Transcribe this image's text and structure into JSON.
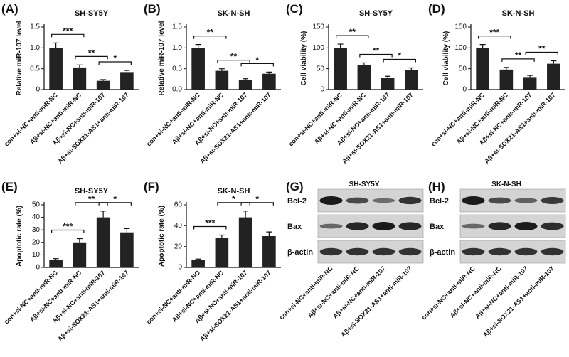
{
  "chart_data": [
    {
      "type": "bar",
      "label": "(A)",
      "title": "SH-SY5Y",
      "ylabel": "Relative miR-107 level",
      "categories": [
        "con+si-NC+anti-miR-NC",
        "Aβ+si-NC+anti-miR-NC",
        "Aβ+si-NC+anti-miR-107",
        "Aβ+si-SOX21-AS1+anti-miR-107"
      ],
      "values": [
        1.0,
        0.53,
        0.21,
        0.42
      ],
      "errors": [
        0.12,
        0.06,
        0.03,
        0.04
      ],
      "color": "#222222",
      "ylim": [
        0,
        1.5
      ],
      "yticks": [
        0,
        0.5,
        {
          "value": 1,
          "label": "1.0"
        },
        1.5
      ],
      "annotations": [
        "***",
        "**",
        "*"
      ]
    },
    {
      "type": "bar",
      "label": "(B)",
      "title": "SK-N-SH",
      "ylabel": "Relative miR-107 level",
      "categories": [
        "con+si-NC+anti-miR-NC",
        "Aβ+si-NC+anti-miR-NC",
        "Aβ+si-NC+anti-miR-107",
        "Aβ+si-SOX21-AS1+anti-miR-107"
      ],
      "values": [
        1.0,
        0.45,
        0.23,
        0.38
      ],
      "errors": [
        0.08,
        0.05,
        0.03,
        0.04
      ],
      "color": "#222222",
      "ylim": [
        0,
        1.5
      ],
      "yticks": [
        {
          "value": 0,
          "label": "0.0"
        },
        0.5,
        {
          "value": 1,
          "label": "1.0"
        },
        1.5
      ],
      "annotations": [
        "**",
        "**",
        "*"
      ]
    },
    {
      "type": "bar",
      "label": "(C)",
      "title": "SH-SY5Y",
      "ylabel": "Cell viability (%)",
      "categories": [
        "con+si-NC+anti-miR-NC",
        "Aβ+si-NC+anti-miR-NC",
        "Aβ+si-NC+anti-miR-107",
        "Aβ+si-SOX21-AS1+anti-miR-107"
      ],
      "values": [
        100,
        58,
        28,
        47
      ],
      "errors": [
        9,
        6,
        4,
        5
      ],
      "color": "#222222",
      "ylim": [
        0,
        150
      ],
      "yticks": [
        0,
        50,
        100,
        150
      ],
      "annotations": [
        "**",
        "**",
        "*"
      ]
    },
    {
      "type": "bar",
      "label": "(D)",
      "title": "SK-N-SH",
      "ylabel": "Cell viability (%)",
      "categories": [
        "con+si-NC+anti-miR-NC",
        "Aβ+si-NC+anti-miR-NC",
        "Aβ+si-NC+anti-miR-107",
        "Aβ+si-SOX21-AS1+anti-miR-107"
      ],
      "values": [
        100,
        48,
        30,
        62
      ],
      "errors": [
        8,
        5,
        4,
        7
      ],
      "color": "#222222",
      "ylim": [
        0,
        150
      ],
      "yticks": [
        0,
        50,
        100,
        150
      ],
      "annotations": [
        "***",
        "**",
        "**"
      ]
    },
    {
      "type": "bar",
      "label": "(E)",
      "title": "SH-SY5Y",
      "ylabel": "Apoptotic rate (%)",
      "categories": [
        "con+si-NC+anti-miR-NC",
        "Aβ+si-NC+anti-miR-NC",
        "Aβ+si-NC+anti-miR-107",
        "Aβ+si-SOX21-AS1+anti-miR-107"
      ],
      "values": [
        6,
        20,
        40,
        28
      ],
      "errors": [
        1,
        3,
        5,
        3
      ],
      "color": "#222222",
      "ylim": [
        0,
        50
      ],
      "yticks": [
        0,
        10,
        20,
        30,
        40,
        50
      ],
      "annotations": [
        "***",
        "**",
        "*"
      ]
    },
    {
      "type": "bar",
      "label": "(F)",
      "title": "SK-N-SH",
      "ylabel": "Apoptotic rate (%)",
      "categories": [
        "con+si-NC+anti-miR-NC",
        "Aβ+si-NC+anti-miR-NC",
        "Aβ+si-NC+anti-miR-107",
        "Aβ+si-SOX21-AS1+anti-miR-107"
      ],
      "values": [
        7,
        28,
        48,
        30
      ],
      "errors": [
        1,
        3,
        6,
        4
      ],
      "color": "#222222",
      "ylim": [
        0,
        60
      ],
      "yticks": [
        0,
        20,
        40,
        60
      ],
      "annotations": [
        "***",
        "*",
        "*"
      ]
    },
    {
      "type": "blot",
      "label": "(G)",
      "title": "SH-SY5Y",
      "rows": [
        "Bcl-2",
        "Bax",
        "β-actin"
      ],
      "categories": [
        "con+si-NC+anti-miR-NC",
        "Aβ+si-NC+anti-miR-NC",
        "Aβ+si-NC+anti-miR-107",
        "Aβ+si-SOX21-AS1+anti-miR-107"
      ]
    },
    {
      "type": "blot",
      "label": "(H)",
      "title": "SK-N-SH",
      "rows": [
        "Bcl-2",
        "Bax",
        "β-actin"
      ],
      "categories": [
        "con+si-NC+anti-miR-NC",
        "Aβ+si-NC+anti-miR-NC",
        "Aβ+si-NC+anti-miR-107",
        "Aβ+si-SOX21-AS1+anti-miR-107"
      ]
    }
  ]
}
